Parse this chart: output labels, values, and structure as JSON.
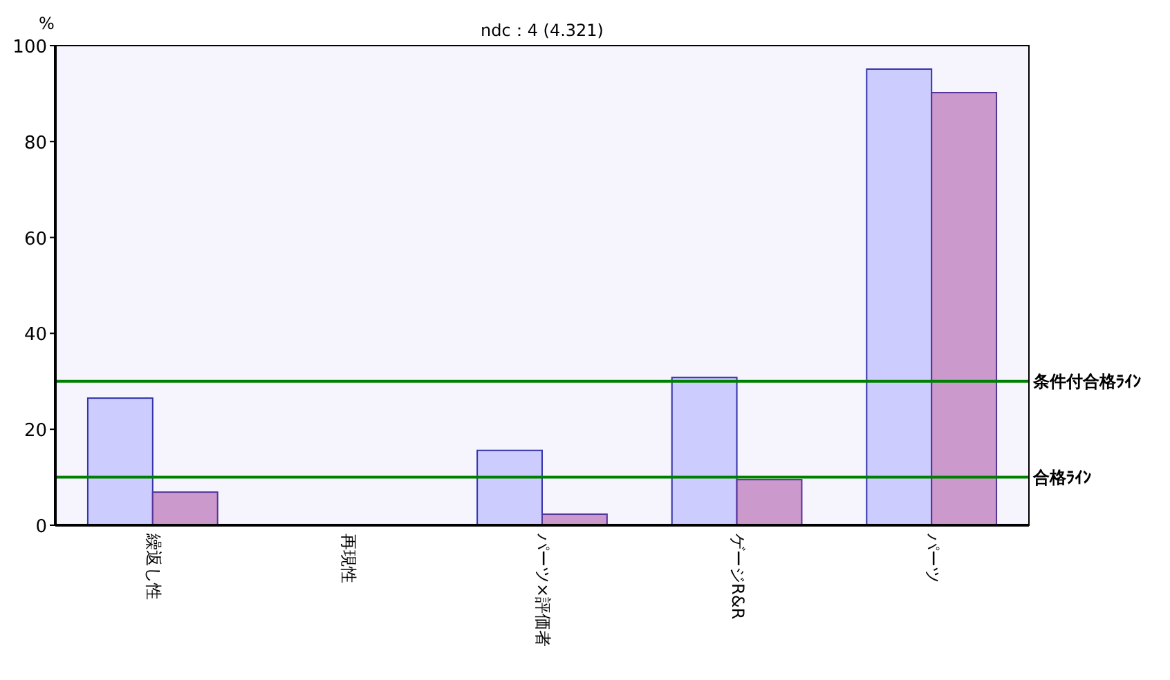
{
  "chart_data": {
    "type": "bar",
    "title": "ndc：4 (4.321)",
    "ylabel": "%",
    "categories": [
      "繰返し性",
      "再現性",
      "パーツ×評価者",
      "ゲージR&R",
      "パーツ"
    ],
    "series": [
      {
        "color": "#ccccff",
        "values": [
          26.5,
          0,
          15.6,
          30.8,
          95.1
        ]
      },
      {
        "color": "#cc99cc",
        "values": [
          6.9,
          0,
          2.3,
          9.5,
          90.2
        ]
      }
    ],
    "ylim": [
      0,
      100
    ],
    "yticks": [
      0,
      20,
      40,
      60,
      80,
      100
    ],
    "ref_lines": [
      {
        "axis": "y",
        "value": 30,
        "label": "条件付合格ﾗｲﾝ",
        "color": "#008000"
      },
      {
        "axis": "y",
        "value": 10,
        "label": "合格ﾗｲﾝ",
        "color": "#008000"
      }
    ]
  }
}
